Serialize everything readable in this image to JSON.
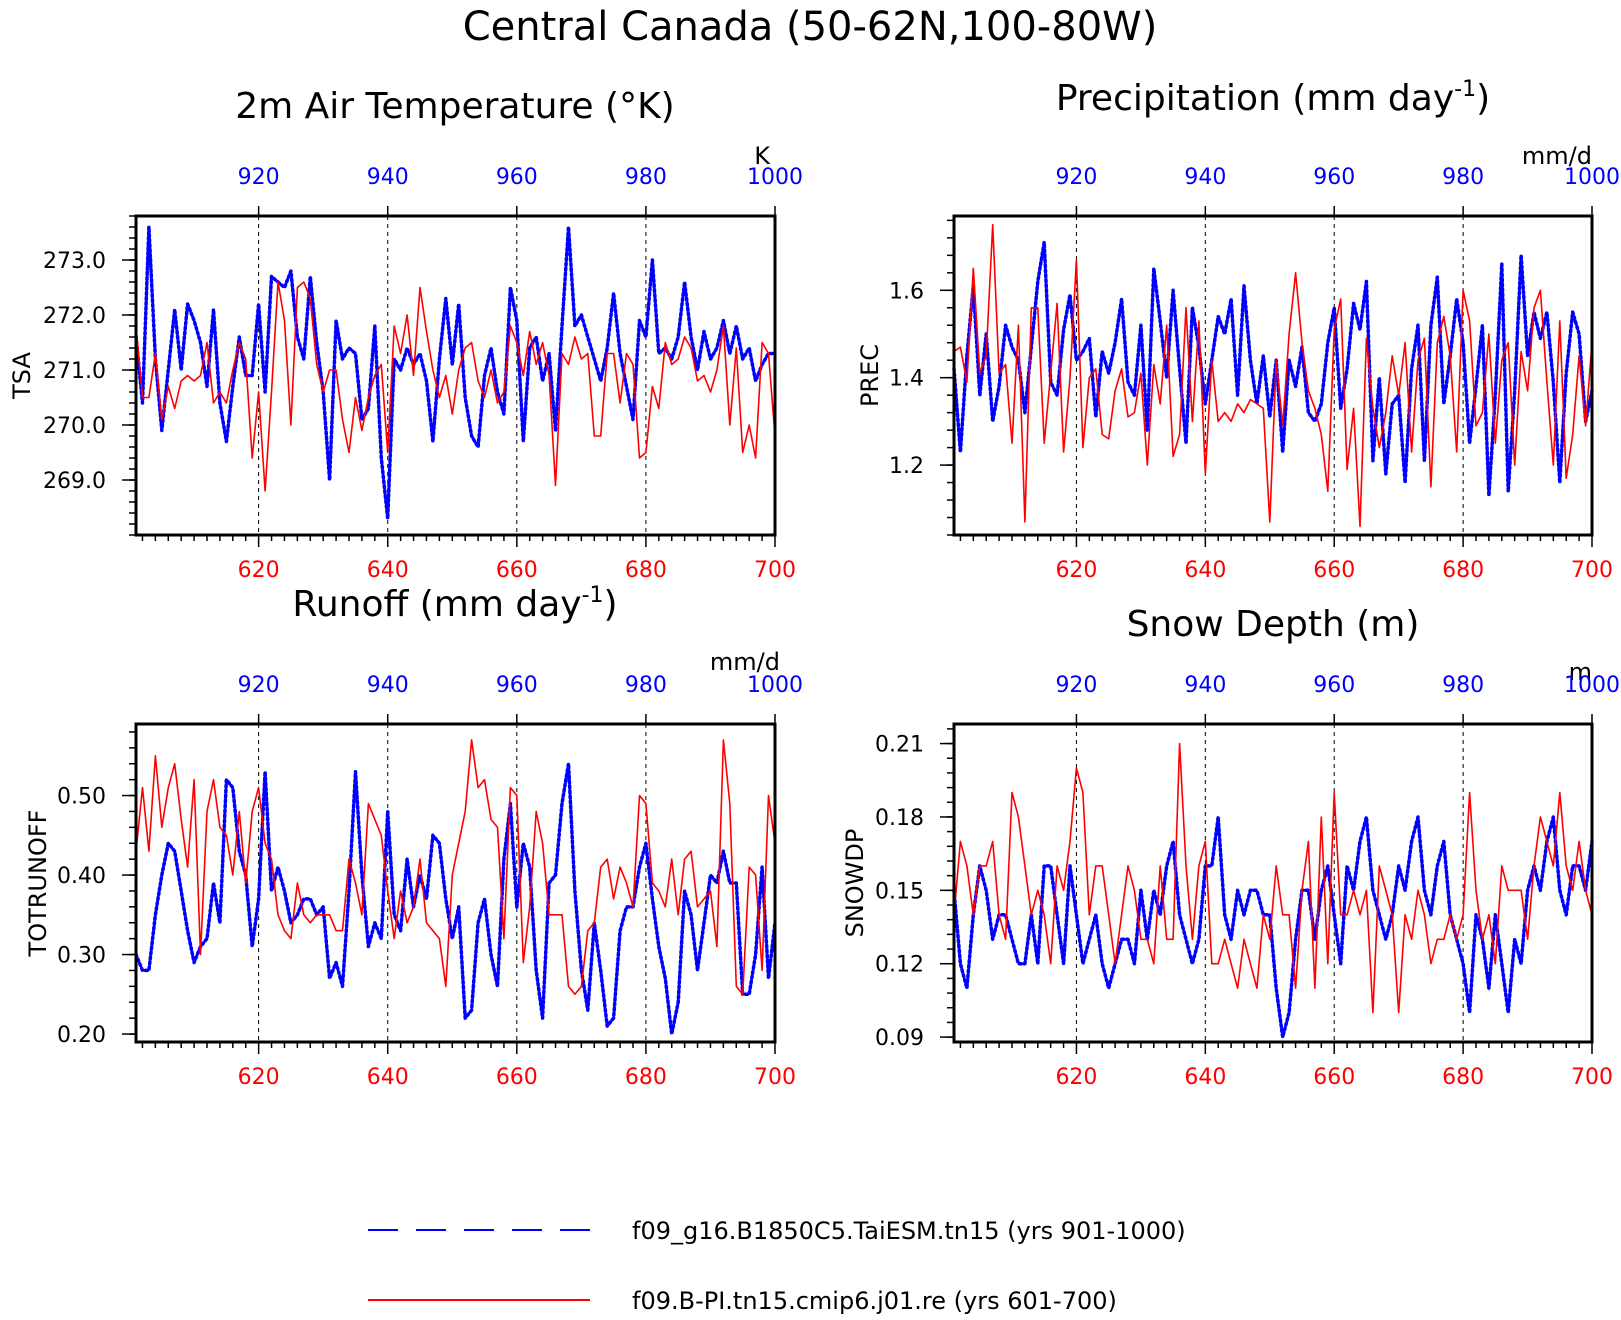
{
  "main_title": "Central Canada (50-62N,100-80W)",
  "colors": {
    "blue": "#0000ff",
    "red": "#ff0000"
  },
  "legend": [
    {
      "label": "f09_g16.B1850C5.TaiESM.tn15 (yrs 901-1000)",
      "color": "#0000ff",
      "style": "dashed"
    },
    {
      "label": "f09.B-PI.tn15.cmip6.j01.re (yrs 601-700)",
      "color": "#ff0000",
      "style": "solid"
    }
  ],
  "chart_data": [
    {
      "type": "line",
      "title": "2m Air Temperature (°K)",
      "title_sup": "",
      "title_tail": "",
      "ylabel": "TSA",
      "unit": "K",
      "ylim": [
        268.0,
        273.8
      ],
      "yticks": [
        269.0,
        270.0,
        271.0,
        272.0,
        273.0
      ],
      "ytick_labels": [
        "269.0",
        "270.0",
        "271.0",
        "272.0",
        "273.0"
      ],
      "ytick_minor": 0.2,
      "xlim_bottom": [
        601,
        700
      ],
      "xticks_bottom": [
        620,
        640,
        660,
        680,
        700
      ],
      "xlim_top": [
        901,
        1000
      ],
      "xticks_top": [
        920,
        940,
        960,
        980,
        1000
      ],
      "series": [
        {
          "color": "#0000ff",
          "style": "dotted",
          "x_axis": "top",
          "x_start": 901,
          "values": [
            271.6,
            270.4,
            273.6,
            271.2,
            269.9,
            271.0,
            272.1,
            271.0,
            272.2,
            271.9,
            271.5,
            270.7,
            272.1,
            270.4,
            269.7,
            270.7,
            271.6,
            270.9,
            270.9,
            272.2,
            270.6,
            272.7,
            272.6,
            272.5,
            272.8,
            271.6,
            271.2,
            272.7,
            271.5,
            270.6,
            269.0,
            271.9,
            271.2,
            271.4,
            271.3,
            270.1,
            270.3,
            271.8,
            269.4,
            268.3,
            271.2,
            271.0,
            271.4,
            271.1,
            271.3,
            270.8,
            269.7,
            271.2,
            272.3,
            271.1,
            272.2,
            270.5,
            269.8,
            269.6,
            270.9,
            271.4,
            270.6,
            270.2,
            272.5,
            271.9,
            269.7,
            271.4,
            271.6,
            270.8,
            271.3,
            269.9,
            271.8,
            273.6,
            271.8,
            272.0,
            271.6,
            271.2,
            270.8,
            271.4,
            272.4,
            271.3,
            270.7,
            270.1,
            271.9,
            271.6,
            273.0,
            271.3,
            271.4,
            271.2,
            271.6,
            272.6,
            271.6,
            271.0,
            271.7,
            271.2,
            271.4,
            271.9,
            271.3,
            271.8,
            271.2,
            271.4,
            270.8,
            271.1,
            271.3,
            271.3
          ]
        },
        {
          "color": "#ff0000",
          "style": "solid",
          "x_axis": "bottom",
          "x_start": 601,
          "values": [
            271.8,
            270.5,
            270.5,
            271.3,
            270.1,
            270.7,
            270.3,
            270.8,
            270.9,
            270.8,
            270.9,
            271.5,
            270.4,
            270.6,
            270.4,
            271.0,
            271.5,
            271.2,
            269.4,
            270.6,
            268.8,
            270.6,
            272.6,
            271.9,
            270.0,
            272.5,
            272.6,
            272.3,
            271.1,
            270.6,
            271.0,
            271.0,
            270.1,
            269.5,
            270.5,
            269.9,
            270.5,
            270.9,
            271.1,
            269.5,
            271.8,
            271.3,
            272.0,
            270.9,
            272.5,
            271.7,
            271.0,
            270.5,
            270.9,
            270.2,
            271.0,
            271.4,
            271.5,
            270.8,
            270.5,
            271.0,
            270.4,
            270.6,
            271.8,
            271.5,
            270.9,
            271.7,
            271.1,
            271.5,
            270.9,
            268.9,
            271.3,
            271.1,
            271.6,
            271.2,
            271.3,
            269.8,
            269.8,
            271.3,
            271.3,
            270.4,
            271.3,
            271.1,
            269.4,
            269.5,
            270.7,
            270.3,
            271.5,
            271.1,
            271.2,
            271.6,
            271.4,
            270.8,
            270.9,
            270.6,
            271.0,
            271.8,
            270.0,
            271.4,
            269.5,
            270.0,
            269.4,
            271.5,
            271.3,
            269.8
          ]
        }
      ]
    },
    {
      "type": "line",
      "title": "Precipitation (mm day",
      "title_sup": "-1",
      "title_tail": ")",
      "ylabel": "PREC",
      "unit": "mm/d",
      "ylim": [
        1.04,
        1.77
      ],
      "yticks": [
        1.2,
        1.4,
        1.6
      ],
      "ytick_labels": [
        "1.2",
        "1.4",
        "1.6"
      ],
      "ytick_minor": 0.04,
      "xlim_bottom": [
        601,
        700
      ],
      "xticks_bottom": [
        620,
        640,
        660,
        680,
        700
      ],
      "xlim_top": [
        901,
        1000
      ],
      "xticks_top": [
        920,
        940,
        960,
        980,
        1000
      ],
      "series": [
        {
          "color": "#0000ff",
          "style": "dotted",
          "x_axis": "top",
          "x_start": 901,
          "values": [
            1.42,
            1.23,
            1.45,
            1.61,
            1.36,
            1.5,
            1.3,
            1.38,
            1.52,
            1.47,
            1.44,
            1.32,
            1.47,
            1.62,
            1.71,
            1.39,
            1.36,
            1.51,
            1.59,
            1.44,
            1.46,
            1.49,
            1.31,
            1.46,
            1.41,
            1.48,
            1.58,
            1.39,
            1.36,
            1.52,
            1.28,
            1.65,
            1.53,
            1.4,
            1.6,
            1.42,
            1.25,
            1.56,
            1.47,
            1.34,
            1.44,
            1.54,
            1.5,
            1.58,
            1.36,
            1.61,
            1.44,
            1.34,
            1.45,
            1.31,
            1.44,
            1.23,
            1.44,
            1.38,
            1.47,
            1.32,
            1.3,
            1.34,
            1.48,
            1.56,
            1.33,
            1.42,
            1.57,
            1.51,
            1.62,
            1.21,
            1.4,
            1.18,
            1.34,
            1.36,
            1.16,
            1.42,
            1.52,
            1.21,
            1.52,
            1.63,
            1.34,
            1.45,
            1.58,
            1.48,
            1.25,
            1.38,
            1.52,
            1.13,
            1.36,
            1.66,
            1.14,
            1.37,
            1.68,
            1.45,
            1.55,
            1.49,
            1.55,
            1.39,
            1.16,
            1.41,
            1.55,
            1.5,
            1.3,
            1.37
          ]
        },
        {
          "color": "#ff0000",
          "style": "solid",
          "x_axis": "bottom",
          "x_start": 601,
          "values": [
            1.46,
            1.47,
            1.39,
            1.65,
            1.41,
            1.45,
            1.75,
            1.41,
            1.43,
            1.25,
            1.52,
            1.07,
            1.56,
            1.56,
            1.25,
            1.41,
            1.57,
            1.23,
            1.4,
            1.67,
            1.24,
            1.4,
            1.42,
            1.27,
            1.26,
            1.37,
            1.42,
            1.31,
            1.32,
            1.41,
            1.2,
            1.43,
            1.34,
            1.52,
            1.22,
            1.27,
            1.56,
            1.3,
            1.53,
            1.18,
            1.44,
            1.3,
            1.32,
            1.3,
            1.34,
            1.32,
            1.35,
            1.34,
            1.33,
            1.07,
            1.44,
            1.29,
            1.5,
            1.64,
            1.48,
            1.37,
            1.33,
            1.27,
            1.14,
            1.51,
            1.58,
            1.19,
            1.33,
            1.06,
            1.49,
            1.33,
            1.24,
            1.32,
            1.45,
            1.36,
            1.48,
            1.23,
            1.44,
            1.49,
            1.15,
            1.48,
            1.54,
            1.45,
            1.23,
            1.6,
            1.53,
            1.29,
            1.32,
            1.5,
            1.25,
            1.44,
            1.48,
            1.2,
            1.46,
            1.37,
            1.56,
            1.6,
            1.39,
            1.2,
            1.53,
            1.17,
            1.27,
            1.45,
            1.29,
            1.48
          ]
        }
      ]
    },
    {
      "type": "line",
      "title": "Runoff (mm day",
      "title_sup": "-1",
      "title_tail": ")",
      "ylabel": "TOTRUNOFF",
      "unit": "mm/d",
      "ylim": [
        0.19,
        0.59
      ],
      "yticks": [
        0.2,
        0.3,
        0.4,
        0.5
      ],
      "ytick_labels": [
        "0.20",
        "0.30",
        "0.40",
        "0.50"
      ],
      "ytick_minor": 0.02,
      "xlim_bottom": [
        601,
        700
      ],
      "xticks_bottom": [
        620,
        640,
        660,
        680,
        700
      ],
      "xlim_top": [
        901,
        1000
      ],
      "xticks_top": [
        920,
        940,
        960,
        980,
        1000
      ],
      "series": [
        {
          "color": "#0000ff",
          "style": "dotted",
          "x_axis": "top",
          "x_start": 901,
          "values": [
            0.3,
            0.28,
            0.28,
            0.35,
            0.4,
            0.44,
            0.43,
            0.38,
            0.33,
            0.29,
            0.31,
            0.32,
            0.39,
            0.34,
            0.52,
            0.51,
            0.43,
            0.4,
            0.31,
            0.37,
            0.53,
            0.38,
            0.41,
            0.38,
            0.34,
            0.35,
            0.37,
            0.37,
            0.35,
            0.36,
            0.27,
            0.29,
            0.26,
            0.38,
            0.53,
            0.4,
            0.31,
            0.34,
            0.32,
            0.48,
            0.35,
            0.33,
            0.42,
            0.36,
            0.4,
            0.37,
            0.45,
            0.44,
            0.37,
            0.32,
            0.36,
            0.22,
            0.23,
            0.34,
            0.37,
            0.3,
            0.26,
            0.42,
            0.49,
            0.36,
            0.44,
            0.41,
            0.28,
            0.22,
            0.39,
            0.4,
            0.49,
            0.54,
            0.38,
            0.28,
            0.23,
            0.34,
            0.28,
            0.21,
            0.22,
            0.33,
            0.36,
            0.36,
            0.41,
            0.44,
            0.37,
            0.31,
            0.27,
            0.2,
            0.24,
            0.38,
            0.35,
            0.28,
            0.34,
            0.4,
            0.39,
            0.43,
            0.39,
            0.39,
            0.25,
            0.25,
            0.3,
            0.41,
            0.27,
            0.34
          ]
        },
        {
          "color": "#ff0000",
          "style": "solid",
          "x_axis": "bottom",
          "x_start": 601,
          "values": [
            0.43,
            0.51,
            0.43,
            0.55,
            0.46,
            0.51,
            0.54,
            0.47,
            0.41,
            0.52,
            0.3,
            0.48,
            0.52,
            0.46,
            0.45,
            0.4,
            0.48,
            0.39,
            0.48,
            0.51,
            0.44,
            0.42,
            0.35,
            0.33,
            0.32,
            0.39,
            0.35,
            0.34,
            0.35,
            0.35,
            0.35,
            0.33,
            0.33,
            0.42,
            0.39,
            0.35,
            0.49,
            0.47,
            0.45,
            0.38,
            0.32,
            0.38,
            0.34,
            0.36,
            0.42,
            0.34,
            0.33,
            0.32,
            0.26,
            0.4,
            0.44,
            0.48,
            0.57,
            0.51,
            0.52,
            0.47,
            0.46,
            0.32,
            0.51,
            0.5,
            0.29,
            0.36,
            0.48,
            0.44,
            0.35,
            0.35,
            0.35,
            0.26,
            0.25,
            0.26,
            0.33,
            0.34,
            0.41,
            0.42,
            0.37,
            0.41,
            0.39,
            0.36,
            0.5,
            0.49,
            0.39,
            0.38,
            0.36,
            0.42,
            0.35,
            0.42,
            0.43,
            0.36,
            0.37,
            0.38,
            0.31,
            0.57,
            0.49,
            0.26,
            0.25,
            0.41,
            0.4,
            0.28,
            0.5,
            0.44
          ]
        }
      ]
    },
    {
      "type": "line",
      "title": "Snow Depth (m)",
      "title_sup": "",
      "title_tail": "",
      "ylabel": "SNOWDP",
      "unit": "m",
      "ylim": [
        0.088,
        0.218
      ],
      "yticks": [
        0.09,
        0.12,
        0.15,
        0.18,
        0.21
      ],
      "ytick_labels": [
        "0.09",
        "0.12",
        "0.15",
        "0.18",
        "0.21"
      ],
      "ytick_minor": 0.006,
      "xlim_bottom": [
        601,
        700
      ],
      "xticks_bottom": [
        620,
        640,
        660,
        680,
        700
      ],
      "xlim_top": [
        901,
        1000
      ],
      "xticks_top": [
        920,
        940,
        960,
        980,
        1000
      ],
      "series": [
        {
          "color": "#0000ff",
          "style": "dotted",
          "x_axis": "top",
          "x_start": 901,
          "values": [
            0.15,
            0.12,
            0.11,
            0.14,
            0.16,
            0.15,
            0.13,
            0.14,
            0.14,
            0.13,
            0.12,
            0.12,
            0.14,
            0.12,
            0.16,
            0.16,
            0.14,
            0.12,
            0.16,
            0.14,
            0.12,
            0.13,
            0.14,
            0.12,
            0.11,
            0.12,
            0.13,
            0.13,
            0.12,
            0.15,
            0.13,
            0.15,
            0.14,
            0.16,
            0.17,
            0.14,
            0.13,
            0.12,
            0.13,
            0.16,
            0.16,
            0.18,
            0.14,
            0.13,
            0.15,
            0.14,
            0.15,
            0.15,
            0.14,
            0.14,
            0.11,
            0.09,
            0.1,
            0.13,
            0.15,
            0.15,
            0.13,
            0.15,
            0.16,
            0.14,
            0.12,
            0.16,
            0.15,
            0.17,
            0.18,
            0.15,
            0.14,
            0.13,
            0.14,
            0.16,
            0.15,
            0.17,
            0.18,
            0.15,
            0.14,
            0.16,
            0.17,
            0.14,
            0.13,
            0.12,
            0.1,
            0.14,
            0.13,
            0.11,
            0.14,
            0.12,
            0.1,
            0.13,
            0.12,
            0.15,
            0.16,
            0.15,
            0.17,
            0.18,
            0.15,
            0.14,
            0.16,
            0.16,
            0.15,
            0.17
          ]
        },
        {
          "color": "#ff0000",
          "style": "solid",
          "x_axis": "bottom",
          "x_start": 601,
          "values": [
            0.14,
            0.17,
            0.16,
            0.14,
            0.16,
            0.16,
            0.17,
            0.14,
            0.13,
            0.19,
            0.18,
            0.16,
            0.14,
            0.15,
            0.14,
            0.12,
            0.16,
            0.15,
            0.17,
            0.2,
            0.19,
            0.14,
            0.16,
            0.16,
            0.14,
            0.12,
            0.14,
            0.16,
            0.15,
            0.13,
            0.13,
            0.12,
            0.16,
            0.13,
            0.13,
            0.21,
            0.16,
            0.13,
            0.16,
            0.17,
            0.12,
            0.12,
            0.13,
            0.12,
            0.11,
            0.13,
            0.12,
            0.11,
            0.14,
            0.13,
            0.16,
            0.14,
            0.14,
            0.11,
            0.15,
            0.17,
            0.11,
            0.18,
            0.12,
            0.19,
            0.14,
            0.14,
            0.15,
            0.14,
            0.15,
            0.1,
            0.16,
            0.15,
            0.14,
            0.1,
            0.14,
            0.13,
            0.15,
            0.14,
            0.12,
            0.13,
            0.13,
            0.14,
            0.13,
            0.14,
            0.19,
            0.15,
            0.13,
            0.14,
            0.12,
            0.16,
            0.15,
            0.15,
            0.15,
            0.13,
            0.16,
            0.18,
            0.17,
            0.16,
            0.19,
            0.16,
            0.15,
            0.17,
            0.15,
            0.14
          ]
        }
      ]
    }
  ]
}
